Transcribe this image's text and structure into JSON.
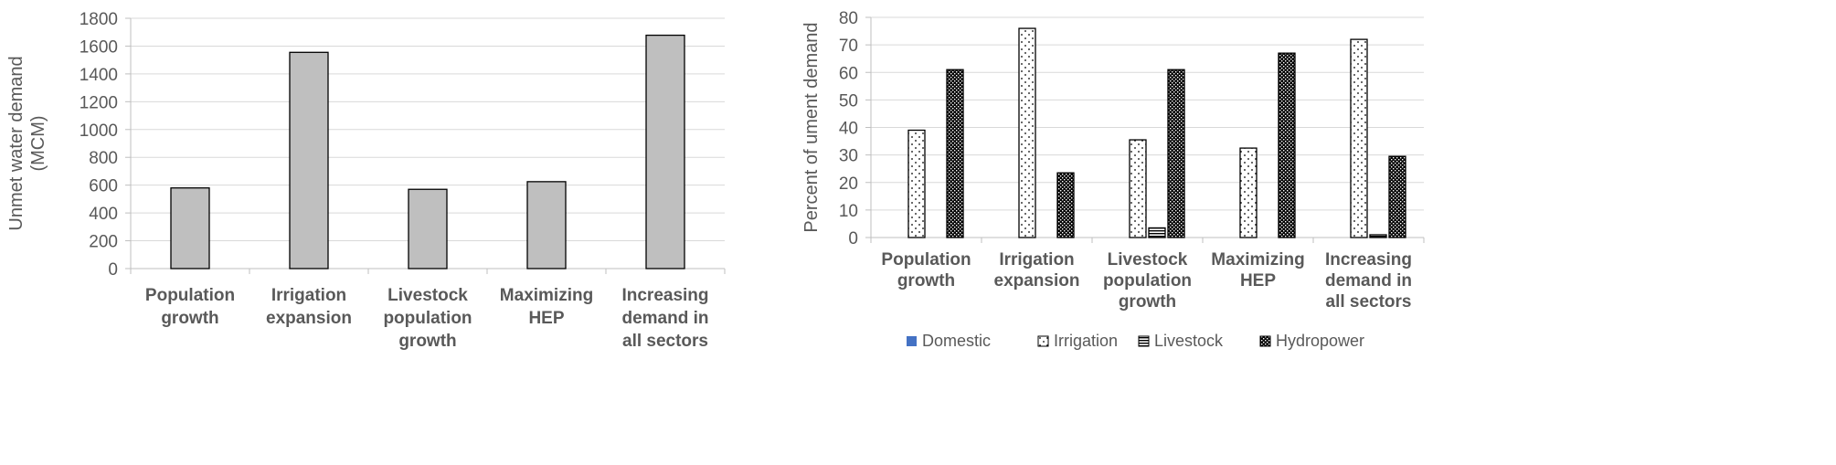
{
  "chart_data": [
    {
      "type": "bar",
      "categories": [
        [
          "Population",
          "growth"
        ],
        [
          "Irrigation",
          "expansion"
        ],
        [
          "Livestock",
          "population",
          "growth"
        ],
        [
          "Maximizing",
          "HEP"
        ],
        [
          "Increasing",
          "demand in",
          "all sectors"
        ]
      ],
      "values": [
        580,
        1555,
        570,
        625,
        1678
      ],
      "ylabel": [
        "Unmet water demand",
        "(MCM)"
      ],
      "ylim": [
        0,
        1800
      ],
      "yticks": [
        0,
        200,
        400,
        600,
        800,
        1000,
        1200,
        1400,
        1600,
        1800
      ],
      "grid": true,
      "legend": "none",
      "colors": {
        "bar": "#bfbfbf",
        "outline": "#000000",
        "grid": "#d9d9d9",
        "axis": "#bfbfbf"
      }
    },
    {
      "type": "bar",
      "categories": [
        [
          "Population",
          "growth"
        ],
        [
          "Irrigation",
          "expansion"
        ],
        [
          "Livestock",
          "population",
          "growth"
        ],
        [
          "Maximizing",
          "HEP"
        ],
        [
          "Increasing",
          "demand in",
          "all sectors"
        ]
      ],
      "series": [
        {
          "name": "Domestic",
          "values": [
            0,
            0,
            0,
            0,
            0
          ],
          "pattern": "solid",
          "color": "#4472c4"
        },
        {
          "name": "Irrigation",
          "values": [
            39,
            76,
            35.5,
            32.5,
            72
          ],
          "pattern": "dots",
          "color": "#000000"
        },
        {
          "name": "Livestock",
          "values": [
            0,
            0,
            3.5,
            0,
            1
          ],
          "pattern": "horizontal-lines",
          "color": "#000000"
        },
        {
          "name": "Hydropower",
          "values": [
            61,
            23.5,
            61,
            67,
            29.5
          ],
          "pattern": "dense-grid",
          "color": "#000000"
        }
      ],
      "ylabel": [
        "Percent of ument demand"
      ],
      "ylim": [
        0,
        80
      ],
      "yticks": [
        0,
        10,
        20,
        30,
        40,
        50,
        60,
        70,
        80
      ],
      "grid": true,
      "legend": "bottom"
    }
  ]
}
